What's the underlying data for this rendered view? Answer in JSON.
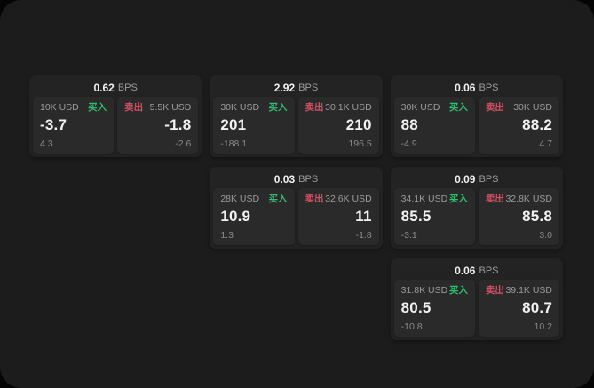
{
  "labels": {
    "bps_unit": "BPS",
    "buy": "买入",
    "sell": "卖出"
  },
  "colors": {
    "buy_green": "#2ebd70",
    "sell_red": "#d24f63",
    "panel_bg": "#1c1c1c",
    "card_bg": "#232323",
    "tile_bg": "#2a2a2a"
  },
  "cards": [
    {
      "bps": "0.62",
      "buy": {
        "amount": "10K USD",
        "price": "-3.7",
        "delta": "4.3"
      },
      "sell": {
        "amount": "5.5K USD",
        "price": "-1.8",
        "delta": "-2.6"
      }
    },
    {
      "bps": "2.92",
      "buy": {
        "amount": "30K USD",
        "price": "201",
        "delta": "-188.1"
      },
      "sell": {
        "amount": "30.1K USD",
        "price": "210",
        "delta": "196.5"
      }
    },
    {
      "bps": "0.06",
      "buy": {
        "amount": "30K USD",
        "price": "88",
        "delta": "-4.9"
      },
      "sell": {
        "amount": "30K USD",
        "price": "88.2",
        "delta": "4.7"
      }
    },
    {
      "bps": "0.03",
      "buy": {
        "amount": "28K USD",
        "price": "10.9",
        "delta": "1.3"
      },
      "sell": {
        "amount": "32.6K USD",
        "price": "11",
        "delta": "-1.8"
      }
    },
    {
      "bps": "0.09",
      "buy": {
        "amount": "34.1K USD",
        "price": "85.5",
        "delta": "-3.1"
      },
      "sell": {
        "amount": "32.8K USD",
        "price": "85.8",
        "delta": "3.0"
      }
    },
    {
      "bps": "0.06",
      "buy": {
        "amount": "31.8K USD",
        "price": "80.5",
        "delta": "-10.8"
      },
      "sell": {
        "amount": "39.1K USD",
        "price": "80.7",
        "delta": "10.2"
      }
    }
  ]
}
